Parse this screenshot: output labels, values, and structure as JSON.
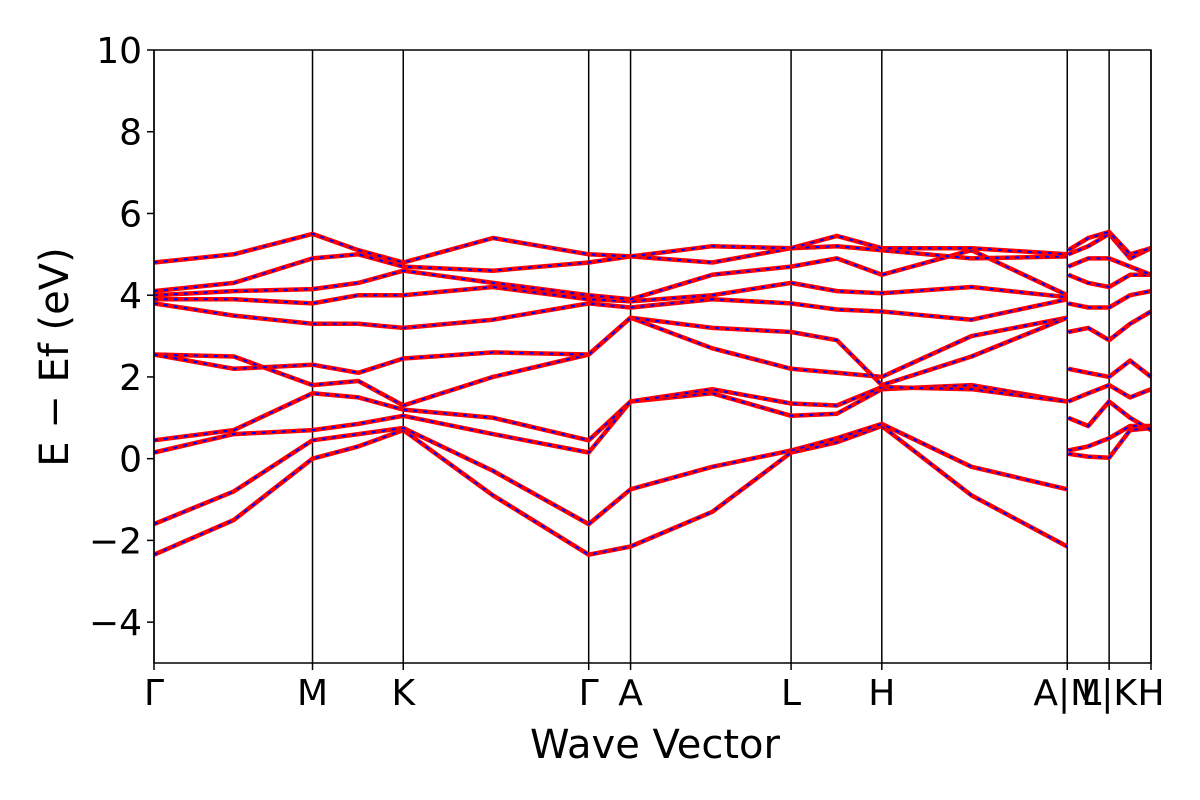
{
  "chart_data": {
    "type": "line",
    "xlabel": "Wave Vector",
    "ylabel": "E − Ef (eV)",
    "xlim": [
      0,
      1
    ],
    "ylim": [
      -5,
      10
    ],
    "yticks": [
      {
        "value": -4,
        "label": "−4"
      },
      {
        "value": -2,
        "label": "−2"
      },
      0,
      2,
      4,
      6,
      8,
      10
    ],
    "xticks": [
      {
        "value": 0,
        "label": "Γ"
      },
      {
        "value": 0.159,
        "label": "M"
      },
      {
        "value": 0.25,
        "label": "K"
      },
      {
        "value": 0.436,
        "label": "Γ"
      },
      {
        "value": 0.478,
        "label": "A"
      },
      {
        "value": 0.639,
        "label": "L"
      },
      {
        "value": 0.73,
        "label": "H"
      },
      {
        "value": 0.916,
        "label": "A|M"
      },
      {
        "value": 0.958,
        "label": "L|K"
      },
      {
        "value": 1,
        "label": "H"
      }
    ],
    "grid": true,
    "line_color": "#ff0000",
    "dash_color": "#0000ff",
    "x": [
      0,
      0.08,
      0.159,
      0.205,
      0.25,
      0.34,
      0.436,
      0.478,
      0.56,
      0.639,
      0.685,
      0.73,
      0.82,
      0.916,
      0.9165,
      0.917,
      0.937,
      0.958,
      0.979,
      1
    ],
    "series": [
      {
        "values": [
          -2.35,
          -1.5,
          0.0,
          0.3,
          0.7,
          -0.9,
          -2.35,
          -2.15,
          -1.3,
          0.15,
          0.4,
          0.8,
          -0.9,
          -2.15,
          null,
          0.12,
          0.05,
          0.02,
          0.7,
          0.75
        ]
      },
      {
        "values": [
          -1.6,
          -0.8,
          0.45,
          0.6,
          0.75,
          -0.3,
          -1.6,
          -0.75,
          -0.2,
          0.2,
          0.5,
          0.85,
          -0.2,
          -0.75,
          null,
          0.2,
          0.3,
          0.5,
          0.8,
          0.8
        ]
      },
      {
        "values": [
          0.15,
          0.6,
          0.7,
          0.85,
          1.05,
          0.6,
          0.15,
          1.4,
          1.6,
          1.05,
          1.1,
          1.7,
          1.8,
          1.4,
          null,
          1.0,
          0.8,
          1.4,
          1.0,
          0.7
        ]
      },
      {
        "values": [
          0.45,
          0.7,
          1.6,
          1.5,
          1.2,
          1.0,
          0.45,
          1.4,
          1.7,
          1.35,
          1.3,
          1.75,
          1.7,
          1.4,
          null,
          1.4,
          1.6,
          1.8,
          1.5,
          1.7
        ]
      },
      {
        "values": [
          2.55,
          2.5,
          1.8,
          1.9,
          1.3,
          2.0,
          2.55,
          3.45,
          2.7,
          2.2,
          2.1,
          2.0,
          3.0,
          3.45,
          null,
          2.2,
          2.1,
          2.0,
          2.4,
          2.0
        ]
      },
      {
        "values": [
          2.55,
          2.2,
          2.3,
          2.1,
          2.45,
          2.6,
          2.55,
          3.45,
          3.2,
          3.1,
          2.9,
          1.8,
          2.5,
          3.45,
          null,
          3.1,
          3.2,
          2.9,
          3.3,
          3.6
        ]
      },
      {
        "values": [
          3.8,
          3.5,
          3.3,
          3.3,
          3.2,
          3.4,
          3.8,
          3.7,
          3.9,
          3.8,
          3.65,
          3.6,
          3.4,
          3.9,
          null,
          3.8,
          3.7,
          3.7,
          4.0,
          4.1
        ]
      },
      {
        "values": [
          3.9,
          3.9,
          3.8,
          4.0,
          4.0,
          4.2,
          3.9,
          3.85,
          4.0,
          4.3,
          4.1,
          4.05,
          4.2,
          3.95,
          null,
          4.5,
          4.3,
          4.2,
          4.5,
          4.5
        ]
      },
      {
        "values": [
          4.0,
          4.1,
          4.15,
          4.3,
          4.6,
          4.3,
          4.0,
          3.9,
          4.5,
          4.7,
          4.9,
          4.5,
          5.1,
          4.0,
          null,
          4.7,
          4.9,
          4.9,
          4.7,
          4.5
        ]
      },
      {
        "values": [
          4.1,
          4.3,
          4.9,
          5.0,
          4.7,
          4.6,
          4.8,
          4.95,
          4.8,
          5.15,
          5.2,
          5.1,
          4.9,
          4.95,
          null,
          5.0,
          5.2,
          5.5,
          4.9,
          5.15
        ]
      },
      {
        "values": [
          4.8,
          5.0,
          5.5,
          5.1,
          4.8,
          5.4,
          5.0,
          4.95,
          5.2,
          5.15,
          5.45,
          5.15,
          5.15,
          5.0,
          null,
          5.1,
          5.4,
          5.55,
          5.0,
          5.15
        ]
      }
    ]
  }
}
